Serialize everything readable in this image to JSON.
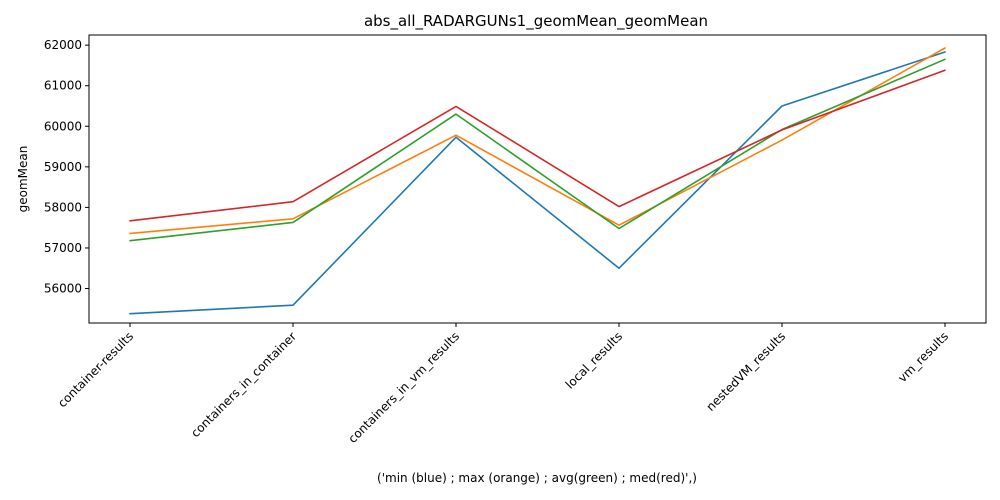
{
  "chart_data": {
    "type": "line",
    "title": "abs_all_RADARGUNs1_geomMean_geomMean",
    "xlabel": "('min (blue) ; max (orange) ; avg(green) ; med(red)',)",
    "ylabel": "geomMean",
    "categories": [
      "container-results",
      "containers_in_container",
      "containers_in_vm_results",
      "local_results",
      "nestedVM_results",
      "vm_results"
    ],
    "ylim": [
      55150,
      62250
    ],
    "yticks": [
      56000,
      57000,
      58000,
      59000,
      60000,
      61000,
      62000
    ],
    "ytick_labels": [
      "56000",
      "57000",
      "58000",
      "59000",
      "60000",
      "61000",
      "62000"
    ],
    "grid": false,
    "series": [
      {
        "color": "#1f77b4",
        "values": [
          55380,
          55590,
          59730,
          56500,
          60500,
          61830
        ]
      },
      {
        "color": "#ff7f0e",
        "values": [
          57360,
          57720,
          59780,
          57560,
          59660,
          61930
        ]
      },
      {
        "color": "#2ca02c",
        "values": [
          57180,
          57630,
          60300,
          57480,
          59920,
          61650
        ]
      },
      {
        "color": "#d62728",
        "values": [
          57670,
          58140,
          60490,
          58020,
          59910,
          61380
        ]
      }
    ]
  }
}
